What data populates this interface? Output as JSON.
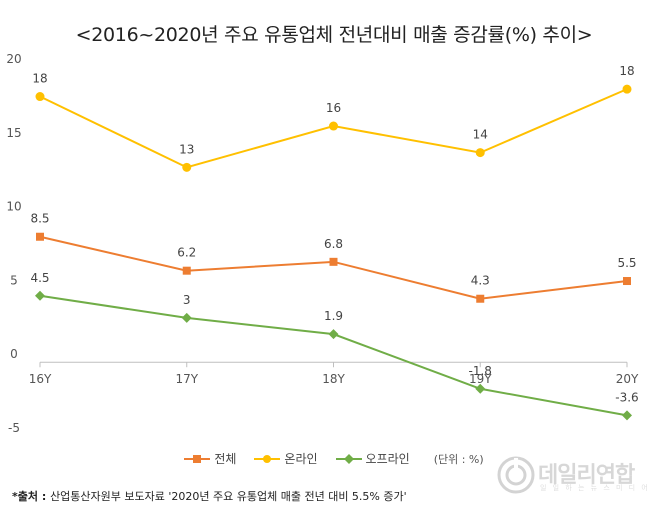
{
  "chart_data": {
    "type": "line",
    "title": "<2016~2020년 주요 유통업체 전년대비 매출 증감률(%) 추이>",
    "categories": [
      "16Y",
      "17Y",
      "18Y",
      "19Y",
      "20Y"
    ],
    "ylim": [
      -5,
      20
    ],
    "yticks": [
      "20",
      "15",
      "10",
      "5",
      "0",
      "-5"
    ],
    "grid": false,
    "legend_position": "bottom",
    "series": [
      {
        "name": "전체",
        "values": [
          8.5,
          6.2,
          6.8,
          4.3,
          5.5
        ],
        "labels": [
          "8.5",
          "6.2",
          "6.8",
          "4.3",
          "5.5"
        ],
        "color": "#ED7D31",
        "marker": "square"
      },
      {
        "name": "온라인",
        "values": [
          18,
          13.2,
          16,
          14.2,
          18.5
        ],
        "labels": [
          "18",
          "13",
          "16",
          "14",
          "18"
        ],
        "color": "#FFC000",
        "marker": "circle"
      },
      {
        "name": "오프라인",
        "values": [
          4.5,
          3,
          1.9,
          -1.8,
          -3.6
        ],
        "labels": [
          "4.5",
          "3",
          "1.9",
          "-1.8",
          "-3.6"
        ],
        "color": "#70AD47",
        "marker": "diamond"
      }
    ],
    "unit_note": "(단위 : %)"
  },
  "source": {
    "prefix": "*출처 : ",
    "text": "산업통산자원부 보도자료 '2020년 주요 유통업체 매출 전년 대비 5.5% 증가'"
  },
  "watermark": {
    "name": "데일리연합",
    "sub": "일 일 하 는 뉴 스 미 디 어"
  }
}
